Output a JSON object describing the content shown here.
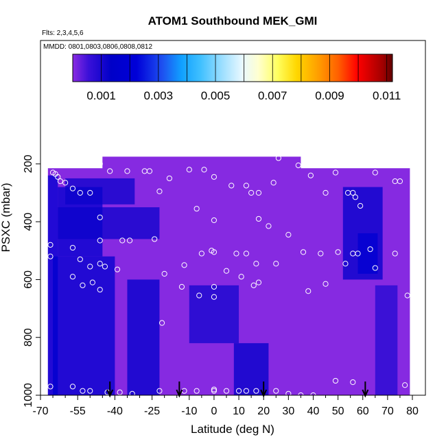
{
  "chart_data": {
    "type": "heatmap",
    "title": "ATOM1 Southbound MEK_GMI",
    "flights_note": "Flts: 2,3,4,5,6",
    "dates_note": "MMDD: 0801,0803,0806,0808,0812",
    "xlabel": "Latitude (deg N)",
    "ylabel": "PSXC (mbar)",
    "xlim": [
      -70,
      80
    ],
    "ylim": [
      1000,
      0
    ],
    "x_ticks": [
      "-70",
      "-55",
      "-40",
      "-25",
      "-10",
      "0",
      "10",
      "20",
      "30",
      "40",
      "50",
      "60",
      "70",
      "80"
    ],
    "x_tick_values": [
      -70,
      -55,
      -40,
      -25,
      -10,
      0,
      10,
      20,
      30,
      40,
      50,
      60,
      70,
      80
    ],
    "x_minor_ticks": [
      -65,
      -60,
      -50,
      -45,
      -35,
      -30,
      -20,
      -15,
      -5,
      5,
      15,
      25,
      35,
      45,
      55,
      65,
      75
    ],
    "y_ticks": [
      "200",
      "400",
      "600",
      "800",
      "1000"
    ],
    "y_tick_values": [
      200,
      400,
      600,
      800,
      1000
    ],
    "colorbar": {
      "min": 0,
      "max": 0.0112,
      "labels": [
        "0.001",
        "0.003",
        "0.005",
        "0.007",
        "0.009",
        "0.011"
      ],
      "label_values": [
        0.001,
        0.003,
        0.005,
        0.007,
        0.009,
        0.011
      ],
      "divisions": [
        0.001,
        0.002,
        0.003,
        0.004,
        0.005,
        0.006,
        0.007,
        0.008,
        0.009,
        0.01,
        0.011
      ],
      "colors": [
        "#8a2be2",
        "#3a10d8",
        "#0000c8",
        "#0000d8",
        "#1e50f0",
        "#10a0ff",
        "#40c0ff",
        "#a0e0ff",
        "#e8f8ff",
        "#ffffd0",
        "#ffff60",
        "#ffd700",
        "#ffa500",
        "#ff6000",
        "#ff0000",
        "#d00000",
        "#a00000",
        "#600000"
      ],
      "color_stops": [
        0,
        0.05,
        0.12,
        0.2,
        0.28,
        0.34,
        0.4,
        0.47,
        0.53,
        0.58,
        0.64,
        0.7,
        0.76,
        0.83,
        0.89,
        0.93,
        0.97,
        1
      ]
    },
    "fill_color": "#8a2be2",
    "data_extent": {
      "lat_min": -67,
      "lat_max": 79,
      "top_pressure_left": 215,
      "top_pressure_mid": 175,
      "mid_start_lat": -45,
      "mid_end_lat": 35
    },
    "regions": [
      {
        "lat": [
          -67,
          -63
        ],
        "p": [
          240,
          1000
        ],
        "value": 0.0018
      },
      {
        "lat": [
          -63,
          -45
        ],
        "p": [
          280,
          520
        ],
        "value": 0.0016
      },
      {
        "lat": [
          -60,
          -32
        ],
        "p": [
          250,
          340
        ],
        "value": 0.0012
      },
      {
        "lat": [
          -65,
          -40
        ],
        "p": [
          520,
          1000
        ],
        "value": 0.0017
      },
      {
        "lat": [
          -63,
          -22
        ],
        "p": [
          350,
          460
        ],
        "value": 0.0012
      },
      {
        "lat": [
          -35,
          -22
        ],
        "p": [
          600,
          1000
        ],
        "value": 0.0015
      },
      {
        "lat": [
          -10,
          10
        ],
        "p": [
          620,
          820
        ],
        "value": 0.0011
      },
      {
        "lat": [
          8,
          22
        ],
        "p": [
          820,
          1000
        ],
        "value": 0.0014
      },
      {
        "lat": [
          52,
          68
        ],
        "p": [
          280,
          600
        ],
        "value": 0.0015
      },
      {
        "lat": [
          58,
          66
        ],
        "p": [
          440,
          580
        ],
        "value": 0.0019
      },
      {
        "lat": [
          65,
          74
        ],
        "p": [
          620,
          1000
        ],
        "value": 0.0009
      }
    ],
    "observation_points": [
      {
        "lat": -65,
        "p": 230
      },
      {
        "lat": -64,
        "p": 235
      },
      {
        "lat": -63,
        "p": 245
      },
      {
        "lat": -62,
        "p": 260
      },
      {
        "lat": -60,
        "p": 265
      },
      {
        "lat": -57,
        "p": 285
      },
      {
        "lat": -54,
        "p": 300
      },
      {
        "lat": -50,
        "p": 300
      },
      {
        "lat": -46,
        "p": 200
      },
      {
        "lat": -42,
        "p": 225
      },
      {
        "lat": -35,
        "p": 225
      },
      {
        "lat": -28,
        "p": 225
      },
      {
        "lat": -26,
        "p": 225
      },
      {
        "lat": -18,
        "p": 250
      },
      {
        "lat": -10,
        "p": 220
      },
      {
        "lat": -4,
        "p": 220
      },
      {
        "lat": 0,
        "p": 245
      },
      {
        "lat": 7,
        "p": 275
      },
      {
        "lat": 13,
        "p": 275
      },
      {
        "lat": 15,
        "p": 300
      },
      {
        "lat": 18,
        "p": 300
      },
      {
        "lat": 24,
        "p": 265
      },
      {
        "lat": 26,
        "p": 180
      },
      {
        "lat": 34,
        "p": 205
      },
      {
        "lat": 39,
        "p": 240
      },
      {
        "lat": 45,
        "p": 300
      },
      {
        "lat": 49,
        "p": 230
      },
      {
        "lat": 54,
        "p": 300
      },
      {
        "lat": 56,
        "p": 300
      },
      {
        "lat": 57,
        "p": 315
      },
      {
        "lat": 59,
        "p": 345
      },
      {
        "lat": 65,
        "p": 230
      },
      {
        "lat": 73,
        "p": 260
      },
      {
        "lat": 75,
        "p": 260
      },
      {
        "lat": -46,
        "p": 385
      },
      {
        "lat": -22,
        "p": 295
      },
      {
        "lat": -7,
        "p": 355
      },
      {
        "lat": 0,
        "p": 395
      },
      {
        "lat": 18,
        "p": 390
      },
      {
        "lat": 22,
        "p": 415
      },
      {
        "lat": 30,
        "p": 445
      },
      {
        "lat": -66,
        "p": 480
      },
      {
        "lat": -57,
        "p": 490
      },
      {
        "lat": -46,
        "p": 465
      },
      {
        "lat": -37,
        "p": 465
      },
      {
        "lat": -34,
        "p": 465
      },
      {
        "lat": -24,
        "p": 460
      },
      {
        "lat": -66,
        "p": 520
      },
      {
        "lat": -54,
        "p": 530
      },
      {
        "lat": -50,
        "p": 555
      },
      {
        "lat": -46,
        "p": 545
      },
      {
        "lat": -44,
        "p": 555
      },
      {
        "lat": -39,
        "p": 565
      },
      {
        "lat": -20,
        "p": 580
      },
      {
        "lat": -12,
        "p": 550
      },
      {
        "lat": -5,
        "p": 510
      },
      {
        "lat": -1,
        "p": 500
      },
      {
        "lat": 0,
        "p": 505
      },
      {
        "lat": 5,
        "p": 570
      },
      {
        "lat": 9,
        "p": 510
      },
      {
        "lat": 13,
        "p": 510
      },
      {
        "lat": 17,
        "p": 545
      },
      {
        "lat": 25,
        "p": 545
      },
      {
        "lat": 36,
        "p": 505
      },
      {
        "lat": 43,
        "p": 510
      },
      {
        "lat": 50,
        "p": 505
      },
      {
        "lat": 53,
        "p": 545
      },
      {
        "lat": 56,
        "p": 510
      },
      {
        "lat": 58,
        "p": 510
      },
      {
        "lat": 63,
        "p": 495
      },
      {
        "lat": 65,
        "p": 560
      },
      {
        "lat": 73,
        "p": 510
      },
      {
        "lat": -57,
        "p": 590
      },
      {
        "lat": -53,
        "p": 620
      },
      {
        "lat": -49,
        "p": 610
      },
      {
        "lat": -46,
        "p": 635
      },
      {
        "lat": -13,
        "p": 625
      },
      {
        "lat": -6,
        "p": 655
      },
      {
        "lat": 0,
        "p": 625
      },
      {
        "lat": 0,
        "p": 660
      },
      {
        "lat": 11,
        "p": 590
      },
      {
        "lat": 16,
        "p": 620
      },
      {
        "lat": 18,
        "p": 610
      },
      {
        "lat": 38,
        "p": 640
      },
      {
        "lat": 45,
        "p": 615
      },
      {
        "lat": 78,
        "p": 655
      },
      {
        "lat": -21,
        "p": 750
      },
      {
        "lat": -57,
        "p": 970
      },
      {
        "lat": -53,
        "p": 985
      },
      {
        "lat": -50,
        "p": 985
      },
      {
        "lat": -43,
        "p": 990
      },
      {
        "lat": -38,
        "p": 990
      },
      {
        "lat": -33,
        "p": 995
      },
      {
        "lat": -22,
        "p": 985
      },
      {
        "lat": -12,
        "p": 985
      },
      {
        "lat": -7,
        "p": 985
      },
      {
        "lat": 0,
        "p": 980
      },
      {
        "lat": 0,
        "p": 985
      },
      {
        "lat": 5,
        "p": 985
      },
      {
        "lat": 10,
        "p": 985
      },
      {
        "lat": 13,
        "p": 985
      },
      {
        "lat": 17,
        "p": 985
      },
      {
        "lat": 25,
        "p": 985
      },
      {
        "lat": 30,
        "p": 995
      },
      {
        "lat": 35,
        "p": 1000
      },
      {
        "lat": 40,
        "p": 1000
      },
      {
        "lat": 49,
        "p": 950
      },
      {
        "lat": 56,
        "p": 955
      },
      {
        "lat": 77,
        "p": 965
      },
      {
        "lat": -66,
        "p": 970
      }
    ],
    "flight_markers_lat": [
      -42,
      -14,
      20,
      61
    ]
  }
}
